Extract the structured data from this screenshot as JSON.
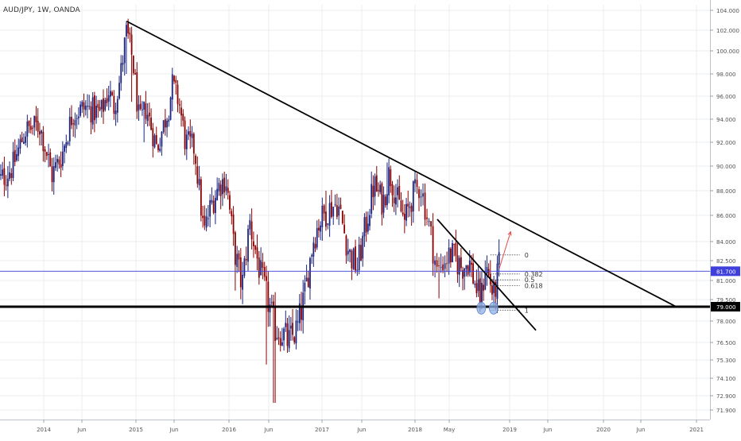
{
  "chart_title": "AUD/JPY, 1W, OANDA",
  "colors": {
    "up": "#1a237e",
    "down": "#8b0000",
    "trendline": "#000000",
    "support": "#000000",
    "price_line": "#3f3fdc",
    "circle": "#8fb0e8",
    "arrow": "#e24b4b",
    "grid": "#e9ecf2"
  },
  "chart_data": {
    "type": "candlestick",
    "symbol": "AUD/JPY",
    "interval": "1W",
    "source": "OANDA",
    "ylim": [
      71.2,
      104.4
    ],
    "y_ticks": [
      "104.000",
      "102.000",
      "100.000",
      "98.000",
      "96.000",
      "94.000",
      "92.000",
      "90.000",
      "88.000",
      "86.000",
      "84.000",
      "82.500",
      "81.000",
      "79.500",
      "78.000",
      "76.500",
      "75.300",
      "74.100",
      "72.900",
      "71.900"
    ],
    "x_ticks": [
      "2014",
      "Jun",
      "2015",
      "Jun",
      "2016",
      "Jun",
      "2017",
      "Jun",
      "2018",
      "May",
      "2019",
      "Jun",
      "2020",
      "Jun",
      "2021"
    ],
    "x_tick_dates": [
      "2014-01-01",
      "2014-06-01",
      "2015-01-01",
      "2015-06-01",
      "2016-01-01",
      "2016-06-01",
      "2017-01-01",
      "2017-06-01",
      "2018-01-01",
      "2018-05-01",
      "2019-01-01",
      "2019-06-01",
      "2020-01-01",
      "2020-06-01",
      "2021-01-01"
    ],
    "start_date": "2013-07-01",
    "end_date": "2021-01-05",
    "current_price": 81.7,
    "current_price_label": "81.700",
    "support_label": "79.000",
    "support_level": 79.0,
    "fib_levels": [
      {
        "label": "0",
        "price": 82.95
      },
      {
        "label": "0.382",
        "price": 81.49
      },
      {
        "label": "0.5",
        "price": 81.05
      },
      {
        "label": "0.618",
        "price": 80.6
      },
      {
        "label": "1",
        "price": 78.76
      }
    ],
    "trendlines": [
      {
        "from": [
          "2014-11-25",
          102.9
        ],
        "to": [
          "2020-10-15",
          79.0
        ]
      },
      {
        "from": [
          "2018-03-20",
          85.7
        ],
        "to": [
          "2019-04-15",
          77.35
        ]
      }
    ],
    "annotations": [
      {
        "type": "circle",
        "date": "2018-09-08",
        "price": 78.9
      },
      {
        "type": "circle",
        "date": "2018-10-28",
        "price": 78.9
      },
      {
        "type": "arrow",
        "from": [
          "2018-11-20",
          81.9
        ],
        "to": [
          "2019-01-05",
          84.75
        ]
      }
    ],
    "anchors": [
      [
        "2013-07-01",
        88.5
      ],
      [
        "2013-09-01",
        90.0
      ],
      [
        "2013-10-20",
        93.0
      ],
      [
        "2013-12-15",
        93.5
      ],
      [
        "2014-01-20",
        90.5
      ],
      [
        "2014-02-01",
        89.2
      ],
      [
        "2014-03-15",
        91.0
      ],
      [
        "2014-04-25",
        94.5
      ],
      [
        "2014-06-15",
        95.0
      ],
      [
        "2014-08-15",
        94.5
      ],
      [
        "2014-09-15",
        96.5
      ],
      [
        "2014-10-05",
        95.0
      ],
      [
        "2014-10-30",
        97.5
      ],
      [
        "2014-11-25",
        102.0
      ],
      [
        "2014-12-20",
        99.0
      ],
      [
        "2015-01-15",
        93.5
      ],
      [
        "2015-02-10",
        95.0
      ],
      [
        "2015-03-25",
        91.5
      ],
      [
        "2015-05-10",
        95.0
      ],
      [
        "2015-05-25",
        97.0
      ],
      [
        "2015-06-20",
        95.5
      ],
      [
        "2015-07-15",
        92.0
      ],
      [
        "2015-08-20",
        91.5
      ],
      [
        "2015-09-25",
        84.5
      ],
      [
        "2015-10-25",
        87.0
      ],
      [
        "2015-11-25",
        88.5
      ],
      [
        "2015-12-20",
        89.0
      ],
      [
        "2016-01-20",
        83.5
      ],
      [
        "2016-02-20",
        80.5
      ],
      [
        "2016-03-20",
        85.5
      ],
      [
        "2016-04-30",
        81.5
      ],
      [
        "2016-06-25",
        77.5
      ],
      [
        "2016-07-25",
        77.2
      ],
      [
        "2016-08-20",
        76.5
      ],
      [
        "2016-09-25",
        77.5
      ],
      [
        "2016-10-25",
        80.0
      ],
      [
        "2016-11-25",
        84.0
      ],
      [
        "2016-12-20",
        85.5
      ],
      [
        "2017-01-25",
        86.5
      ],
      [
        "2017-03-01",
        87.0
      ],
      [
        "2017-04-15",
        83.0
      ],
      [
        "2017-05-15",
        82.0
      ],
      [
        "2017-06-15",
        85.0
      ],
      [
        "2017-07-20",
        88.5
      ],
      [
        "2017-08-25",
        87.0
      ],
      [
        "2017-09-20",
        89.5
      ],
      [
        "2017-10-25",
        87.0
      ],
      [
        "2017-11-20",
        85.5
      ],
      [
        "2017-12-20",
        87.5
      ],
      [
        "2018-01-20",
        88.5
      ],
      [
        "2018-02-25",
        84.5
      ],
      [
        "2018-03-20",
        81.5
      ],
      [
        "2018-04-10",
        82.5
      ],
      [
        "2018-05-10",
        83.0
      ],
      [
        "2018-06-20",
        82.0
      ],
      [
        "2018-07-20",
        82.5
      ],
      [
        "2018-08-10",
        81.0
      ],
      [
        "2018-08-25",
        80.0
      ],
      [
        "2018-09-08",
        79.6
      ],
      [
        "2018-09-25",
        82.2
      ],
      [
        "2018-10-15",
        80.8
      ],
      [
        "2018-10-28",
        79.7
      ],
      [
        "2018-11-10",
        81.0
      ],
      [
        "2018-11-20",
        82.3
      ]
    ],
    "spikes": [
      [
        "2014-11-24",
        102.9,
        98.0
      ],
      [
        "2014-12-15",
        101.0,
        95.5
      ],
      [
        "2015-02-02",
        93.0,
        92.0
      ],
      [
        "2016-01-25",
        84.0,
        80.2
      ],
      [
        "2016-06-24",
        78.5,
        72.4
      ],
      [
        "2016-05-25",
        80.5,
        75.0
      ],
      [
        "2017-01-16",
        88.0,
        85.0
      ],
      [
        "2017-09-15",
        90.3,
        87.5
      ],
      [
        "2018-03-26",
        82.5,
        79.6
      ],
      [
        "2018-10-30",
        81.0,
        78.9
      ],
      [
        "2018-09-10",
        81.0,
        78.9
      ]
    ]
  }
}
